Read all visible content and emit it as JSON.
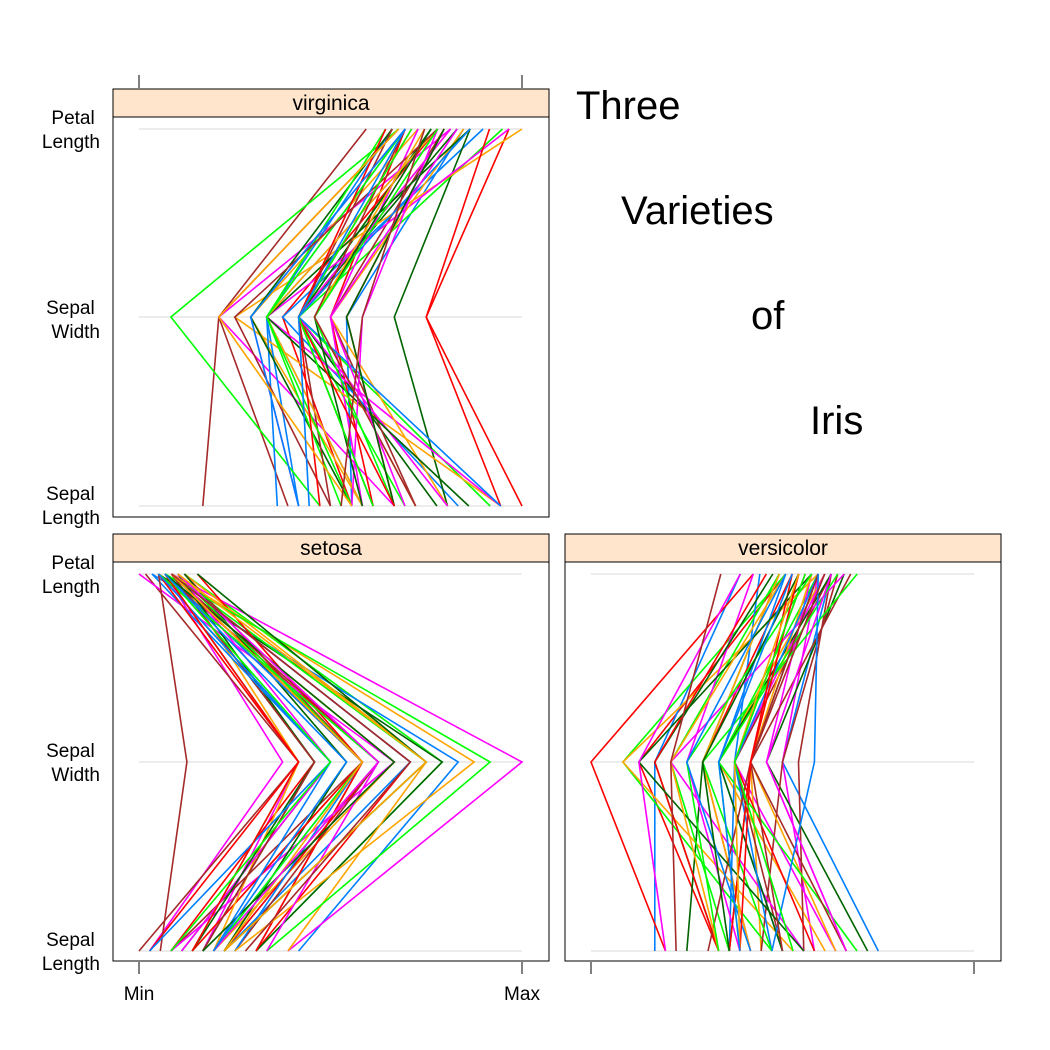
{
  "title_words": [
    "Three",
    "Varieties",
    "of",
    "Iris"
  ],
  "axis": {
    "variable_labels": [
      [
        "Sepal",
        "Length"
      ],
      [
        "Sepal",
        "Width"
      ],
      [
        "Petal",
        "Length"
      ]
    ],
    "x_tick_labels": [
      "Min",
      "Max"
    ]
  },
  "colors": [
    "#0080ff",
    "#ff00ff",
    "#006400",
    "#ff0000",
    "#ffa500",
    "#00ff00",
    "#a52a2a"
  ],
  "strip_color": "#ffe5cc",
  "chart_data": {
    "type": "parallel-coordinates",
    "x_range": [
      "Min",
      "Max"
    ],
    "variables": [
      "Sepal Length",
      "Sepal Width",
      "Petal Length"
    ],
    "panels": [
      {
        "name": "setosa",
        "observations": [
          [
            5.1,
            3.5,
            1.4
          ],
          [
            4.9,
            3.0,
            1.4
          ],
          [
            4.7,
            3.2,
            1.3
          ],
          [
            4.6,
            3.1,
            1.5
          ],
          [
            5.0,
            3.6,
            1.4
          ],
          [
            5.4,
            3.9,
            1.7
          ],
          [
            4.6,
            3.4,
            1.4
          ],
          [
            5.0,
            3.4,
            1.5
          ],
          [
            4.4,
            2.9,
            1.4
          ],
          [
            4.9,
            3.1,
            1.5
          ],
          [
            5.4,
            3.7,
            1.5
          ],
          [
            4.8,
            3.4,
            1.6
          ],
          [
            4.8,
            3.0,
            1.4
          ],
          [
            4.3,
            3.0,
            1.1
          ],
          [
            5.8,
            4.0,
            1.2
          ],
          [
            5.7,
            4.4,
            1.5
          ],
          [
            5.4,
            3.9,
            1.3
          ],
          [
            5.1,
            3.5,
            1.4
          ],
          [
            5.7,
            3.8,
            1.7
          ],
          [
            5.1,
            3.8,
            1.5
          ],
          [
            5.4,
            3.4,
            1.7
          ],
          [
            5.1,
            3.7,
            1.5
          ],
          [
            4.6,
            3.6,
            1.0
          ],
          [
            5.1,
            3.3,
            1.7
          ],
          [
            4.8,
            3.4,
            1.9
          ],
          [
            5.0,
            3.0,
            1.6
          ],
          [
            5.0,
            3.4,
            1.6
          ],
          [
            5.2,
            3.5,
            1.5
          ],
          [
            5.2,
            3.4,
            1.4
          ],
          [
            4.7,
            3.2,
            1.6
          ],
          [
            4.8,
            3.1,
            1.6
          ],
          [
            5.4,
            3.4,
            1.5
          ],
          [
            5.2,
            4.1,
            1.5
          ],
          [
            5.5,
            4.2,
            1.4
          ],
          [
            4.9,
            3.1,
            1.5
          ],
          [
            5.0,
            3.2,
            1.2
          ],
          [
            5.5,
            3.5,
            1.3
          ],
          [
            4.9,
            3.6,
            1.4
          ],
          [
            4.4,
            3.0,
            1.3
          ],
          [
            5.1,
            3.4,
            1.5
          ],
          [
            5.0,
            3.5,
            1.3
          ],
          [
            4.5,
            2.3,
            1.3
          ],
          [
            4.4,
            3.2,
            1.3
          ],
          [
            5.0,
            3.5,
            1.6
          ],
          [
            5.1,
            3.8,
            1.9
          ],
          [
            4.8,
            3.0,
            1.4
          ],
          [
            5.1,
            3.8,
            1.6
          ],
          [
            4.6,
            3.2,
            1.4
          ],
          [
            5.3,
            3.7,
            1.5
          ],
          [
            5.0,
            3.3,
            1.4
          ]
        ]
      },
      {
        "name": "versicolor",
        "observations": [
          [
            7.0,
            3.2,
            4.7
          ],
          [
            6.4,
            3.2,
            4.5
          ],
          [
            6.9,
            3.1,
            4.9
          ],
          [
            5.5,
            2.3,
            4.0
          ],
          [
            6.5,
            2.8,
            4.6
          ],
          [
            5.7,
            2.8,
            4.5
          ],
          [
            6.3,
            3.3,
            4.7
          ],
          [
            4.9,
            2.4,
            3.3
          ],
          [
            6.6,
            2.9,
            4.6
          ],
          [
            5.2,
            2.7,
            3.9
          ],
          [
            5.0,
            2.0,
            3.5
          ],
          [
            5.9,
            3.0,
            4.2
          ],
          [
            6.0,
            2.2,
            4.0
          ],
          [
            6.1,
            2.9,
            4.7
          ],
          [
            5.6,
            2.9,
            3.6
          ],
          [
            6.7,
            3.1,
            4.4
          ],
          [
            5.6,
            3.0,
            4.5
          ],
          [
            5.8,
            2.7,
            4.1
          ],
          [
            6.2,
            2.2,
            4.5
          ],
          [
            5.6,
            2.5,
            3.9
          ],
          [
            5.9,
            3.2,
            4.8
          ],
          [
            6.1,
            2.8,
            4.0
          ],
          [
            6.3,
            2.5,
            4.9
          ],
          [
            6.1,
            2.8,
            4.7
          ],
          [
            6.4,
            2.9,
            4.3
          ],
          [
            6.6,
            3.0,
            4.4
          ],
          [
            6.8,
            2.8,
            4.8
          ],
          [
            6.7,
            3.0,
            5.0
          ],
          [
            6.0,
            2.9,
            4.5
          ],
          [
            5.7,
            2.6,
            3.5
          ],
          [
            5.5,
            2.4,
            3.8
          ],
          [
            5.5,
            2.4,
            3.7
          ],
          [
            5.8,
            2.7,
            3.9
          ],
          [
            6.0,
            2.7,
            5.1
          ],
          [
            5.4,
            3.0,
            4.5
          ],
          [
            6.0,
            3.4,
            4.5
          ],
          [
            6.7,
            3.1,
            4.7
          ],
          [
            6.3,
            2.3,
            4.4
          ],
          [
            5.6,
            3.0,
            4.1
          ],
          [
            5.5,
            2.5,
            4.0
          ],
          [
            5.5,
            2.6,
            4.4
          ],
          [
            6.1,
            3.0,
            4.6
          ],
          [
            5.8,
            2.6,
            4.0
          ],
          [
            5.0,
            2.3,
            3.3
          ],
          [
            5.6,
            2.7,
            4.2
          ],
          [
            5.7,
            3.0,
            4.2
          ],
          [
            5.7,
            2.9,
            4.2
          ],
          [
            6.2,
            2.9,
            4.3
          ],
          [
            5.1,
            2.5,
            3.0
          ],
          [
            5.7,
            2.8,
            4.1
          ]
        ]
      },
      {
        "name": "virginica",
        "observations": [
          [
            6.3,
            3.3,
            6.0
          ],
          [
            5.8,
            2.7,
            5.1
          ],
          [
            7.1,
            3.0,
            5.9
          ],
          [
            6.3,
            2.9,
            5.6
          ],
          [
            6.5,
            3.0,
            5.8
          ],
          [
            7.6,
            3.0,
            6.6
          ],
          [
            4.9,
            2.5,
            4.5
          ],
          [
            7.3,
            2.9,
            6.3
          ],
          [
            6.7,
            2.5,
            5.8
          ],
          [
            7.2,
            3.6,
            6.1
          ],
          [
            6.5,
            3.2,
            5.1
          ],
          [
            6.4,
            2.7,
            5.3
          ],
          [
            6.8,
            3.0,
            5.5
          ],
          [
            5.7,
            2.5,
            5.0
          ],
          [
            5.8,
            2.8,
            5.1
          ],
          [
            6.4,
            3.2,
            5.3
          ],
          [
            6.5,
            3.0,
            5.5
          ],
          [
            7.7,
            3.8,
            6.7
          ],
          [
            7.7,
            2.6,
            6.9
          ],
          [
            6.0,
            2.2,
            5.0
          ],
          [
            6.9,
            3.2,
            5.7
          ],
          [
            5.6,
            2.8,
            4.9
          ],
          [
            7.7,
            2.8,
            6.7
          ],
          [
            6.3,
            2.7,
            4.9
          ],
          [
            6.7,
            3.3,
            5.7
          ],
          [
            7.2,
            3.2,
            6.0
          ],
          [
            6.2,
            2.8,
            4.8
          ],
          [
            6.1,
            3.0,
            4.9
          ],
          [
            6.4,
            2.8,
            5.6
          ],
          [
            7.2,
            3.0,
            5.8
          ],
          [
            7.4,
            2.8,
            6.1
          ],
          [
            7.9,
            3.8,
            6.4
          ],
          [
            6.4,
            2.8,
            5.6
          ],
          [
            6.3,
            2.8,
            5.1
          ],
          [
            6.1,
            2.6,
            5.6
          ],
          [
            7.7,
            3.0,
            6.1
          ],
          [
            6.3,
            3.4,
            5.6
          ],
          [
            6.4,
            3.1,
            5.5
          ],
          [
            6.0,
            3.0,
            4.8
          ],
          [
            6.9,
            3.1,
            5.4
          ],
          [
            6.7,
            3.1,
            5.6
          ],
          [
            6.9,
            3.1,
            5.1
          ],
          [
            5.8,
            2.7,
            5.1
          ],
          [
            6.8,
            3.2,
            5.9
          ],
          [
            6.7,
            3.3,
            5.7
          ],
          [
            6.7,
            3.0,
            5.2
          ],
          [
            6.3,
            2.5,
            5.0
          ],
          [
            6.5,
            3.0,
            5.2
          ],
          [
            6.2,
            3.4,
            5.4
          ],
          [
            5.9,
            3.0,
            5.1
          ]
        ]
      }
    ]
  }
}
